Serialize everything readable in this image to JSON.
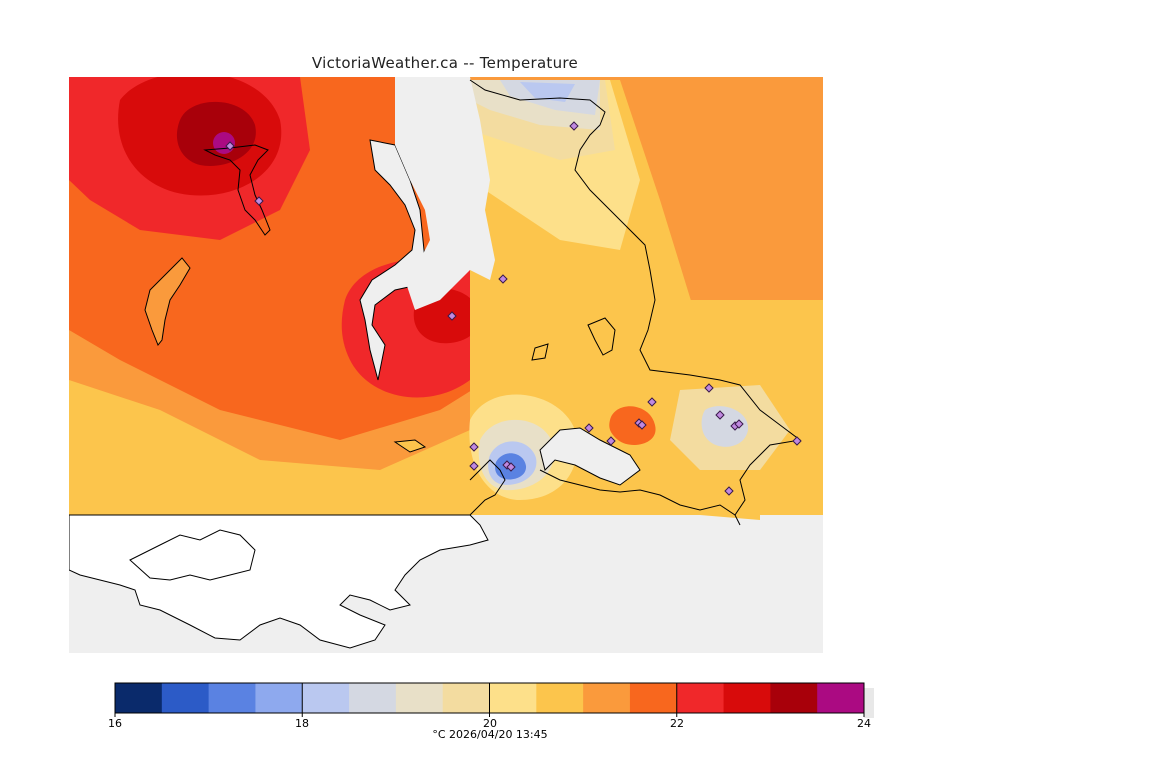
{
  "title": "VictoriaWeather.ca -- Temperature",
  "colorbar": {
    "tick_labels": [
      "16",
      "18",
      "20",
      "22",
      "24"
    ],
    "caption": "°C  2026/04/20 13:45",
    "bins": [
      {
        "min": 16.0,
        "max": 16.5,
        "color": "#0a2a6b"
      },
      {
        "min": 16.5,
        "max": 17.0,
        "color": "#2c5bc7"
      },
      {
        "min": 17.0,
        "max": 17.5,
        "color": "#5a82e2"
      },
      {
        "min": 17.5,
        "max": 18.0,
        "color": "#8ea9ee"
      },
      {
        "min": 18.0,
        "max": 18.5,
        "color": "#bac8f0"
      },
      {
        "min": 18.5,
        "max": 19.0,
        "color": "#d4d8e2"
      },
      {
        "min": 19.0,
        "max": 19.5,
        "color": "#e8e0c8"
      },
      {
        "min": 19.5,
        "max": 20.0,
        "color": "#f3dca0"
      },
      {
        "min": 20.0,
        "max": 20.5,
        "color": "#fde08a"
      },
      {
        "min": 20.5,
        "max": 21.0,
        "color": "#fcc54c"
      },
      {
        "min": 21.0,
        "max": 21.5,
        "color": "#fa9a3c"
      },
      {
        "min": 21.5,
        "max": 22.0,
        "color": "#f8671e"
      },
      {
        "min": 22.0,
        "max": 22.5,
        "color": "#f0282a"
      },
      {
        "min": 22.5,
        "max": 23.0,
        "color": "#d80b0b"
      },
      {
        "min": 23.0,
        "max": 23.5,
        "color": "#a8000a"
      },
      {
        "min": 23.5,
        "max": 24.0,
        "color": "#ab0a82"
      }
    ]
  },
  "colors": {
    "ocean": "#efefef",
    "no_data_land": "#ffffff",
    "coastline": "#000000",
    "station_marker": "#9b59c7"
  }
}
